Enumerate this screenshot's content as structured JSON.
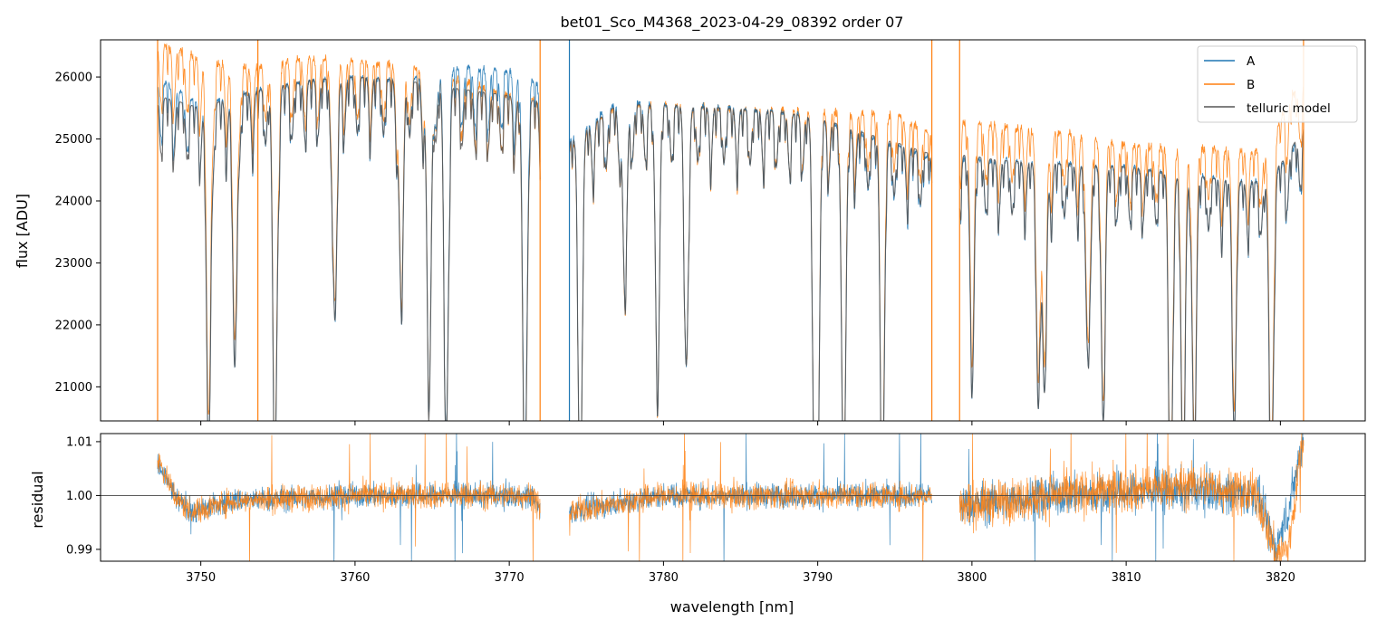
{
  "chart_data": {
    "type": "line",
    "title": "bet01_Sco_M4368_2023-04-29_08392  order 07",
    "xlabel": "wavelength [nm]",
    "xlim": [
      3743.5,
      3825.5
    ],
    "x_ticks": [
      3750,
      3760,
      3770,
      3780,
      3790,
      3800,
      3810,
      3820
    ],
    "legend_placement": "top-right",
    "colors": {
      "A": "#1f77b4",
      "B": "#ff7f0e",
      "telluric": "#555555"
    },
    "segments": [
      [
        3747.2,
        3772.0
      ],
      [
        3773.9,
        3797.4
      ],
      [
        3799.2,
        3821.5
      ]
    ],
    "telluric_lines": [
      {
        "x": 3750.5,
        "depth": 0.22
      },
      {
        "x": 3752.2,
        "depth": 0.17
      },
      {
        "x": 3754.8,
        "depth": 0.24
      },
      {
        "x": 3758.7,
        "depth": 0.15
      },
      {
        "x": 3763.0,
        "depth": 0.14
      },
      {
        "x": 3764.8,
        "depth": 0.2
      },
      {
        "x": 3765.9,
        "depth": 0.22
      },
      {
        "x": 3771.0,
        "depth": 0.24
      },
      {
        "x": 3774.6,
        "depth": 0.22
      },
      {
        "x": 3777.5,
        "depth": 0.12
      },
      {
        "x": 3779.6,
        "depth": 0.16
      },
      {
        "x": 3781.5,
        "depth": 0.15
      },
      {
        "x": 3789.8,
        "depth": 0.22
      },
      {
        "x": 3790.0,
        "depth": 0.2
      },
      {
        "x": 3791.7,
        "depth": 0.22
      },
      {
        "x": 3794.2,
        "depth": 0.22
      },
      {
        "x": 3800.0,
        "depth": 0.12
      },
      {
        "x": 3804.3,
        "depth": 0.13
      },
      {
        "x": 3804.7,
        "depth": 0.15
      },
      {
        "x": 3807.5,
        "depth": 0.12
      },
      {
        "x": 3808.5,
        "depth": 0.14
      },
      {
        "x": 3812.9,
        "depth": 0.2
      },
      {
        "x": 3813.7,
        "depth": 0.18
      },
      {
        "x": 3814.4,
        "depth": 0.16
      },
      {
        "x": 3817.0,
        "depth": 0.14
      },
      {
        "x": 3819.4,
        "depth": 0.2
      }
    ],
    "panels": [
      {
        "ylabel": "flux [ADU]",
        "ylim": [
          20450,
          26600
        ],
        "y_ticks": [
          21000,
          22000,
          23000,
          24000,
          25000,
          26000
        ],
        "series": [
          {
            "name": "A",
            "x": [
              3747.2,
              3750,
              3753,
              3757,
              3760,
              3763,
              3767,
              3770,
              3772.0,
              3773.9,
              3777,
              3780,
              3784,
              3787,
              3790,
              3793,
              3795,
              3797.4,
              3799.2,
              3802,
              3806,
              3810,
              3813,
              3816,
              3819,
              3820.5,
              3821.5
            ],
            "y": [
              26000,
              25550,
              25750,
              25950,
              26000,
              25950,
              26150,
              26100,
              25900,
              25000,
              25600,
              25550,
              25500,
              25450,
              25350,
              25050,
              24900,
              24700,
              24700,
              24650,
              24600,
              24550,
              24450,
              24350,
              24300,
              24700,
              25150
            ]
          },
          {
            "name": "B",
            "x": [
              3747.2,
              3750,
              3753,
              3757,
              3760,
              3763,
              3767,
              3770,
              3772.0,
              3773.9,
              3777,
              3780,
              3784,
              3787,
              3790,
              3793,
              3795,
              3797.4,
              3799.2,
              3802,
              3806,
              3810,
              3813,
              3816,
              3819,
              3820.5,
              3821.5
            ],
            "y": [
              26550,
              26300,
              26150,
              26300,
              26250,
              26200,
              25950,
              25700,
              25600,
              24900,
              25550,
              25550,
              25500,
              25450,
              25450,
              25400,
              25400,
              25100,
              25300,
              25200,
              25100,
              24900,
              24850,
              24850,
              24800,
              25600,
              25950
            ]
          },
          {
            "name": "telluric model",
            "x": [
              3747.2,
              3750,
              3753,
              3757,
              3760,
              3763,
              3767,
              3770,
              3772.0,
              3773.9,
              3777,
              3780,
              3784,
              3787,
              3790,
              3793,
              3795,
              3797.4,
              3799.2,
              3802,
              3806,
              3810,
              3813,
              3816,
              3819,
              3820.5,
              3821.5
            ],
            "y": [
              25700,
              25500,
              25750,
              25950,
              26000,
              25950,
              25800,
              25700,
              25600,
              24950,
              25550,
              25550,
              25500,
              25450,
              25350,
              25100,
              24950,
              24750,
              24750,
              24650,
              24600,
              24550,
              24450,
              24350,
              24300,
              24750,
              25200
            ]
          }
        ],
        "spikes": {
          "A": [
            3773.9
          ],
          "B": [
            3747.2,
            3753.7,
            3772.0,
            3797.4,
            3799.2,
            3821.5
          ]
        }
      },
      {
        "ylabel": "residual",
        "ylim": [
          0.9878,
          1.0115
        ],
        "y_ticks": [
          0.99,
          1.0,
          1.01
        ],
        "y_tick_labels": [
          "0.99",
          "1.00",
          "1.01"
        ],
        "reference_line": 1.0,
        "series": [
          {
            "name": "A",
            "x": [
              3747.2,
              3748.5,
              3749.5,
              3752,
              3760,
              3770,
              3771.5,
              3772.0,
              3773.9,
              3780,
              3790,
              3797.4,
              3799.2,
              3805,
              3815,
              3818.5,
              3819.7,
              3820.5,
              3821.5
            ],
            "y": [
              1.006,
              0.999,
              0.997,
              0.999,
              1.0,
              1.0,
              1.0,
              0.997,
              0.997,
              1.0,
              1.0,
              1.0,
              0.998,
              1.0,
              1.001,
              1.0,
              0.99,
              0.997,
              1.011
            ],
            "noise": 0.0022
          },
          {
            "name": "B",
            "x": [
              3747.2,
              3748.5,
              3749.5,
              3752,
              3760,
              3770,
              3771.5,
              3772.0,
              3773.9,
              3780,
              3790,
              3797.4,
              3799.2,
              3805,
              3815,
              3818.5,
              3819.7,
              3820.5,
              3821.5
            ],
            "y": [
              1.007,
              0.999,
              0.997,
              0.999,
              1.0,
              1.0,
              1.0,
              0.997,
              0.997,
              1.0,
              1.0,
              1.0,
              0.998,
              1.0,
              1.002,
              1.0,
              0.989,
              0.99,
              1.011
            ],
            "noise": 0.0024
          }
        ]
      }
    ]
  }
}
